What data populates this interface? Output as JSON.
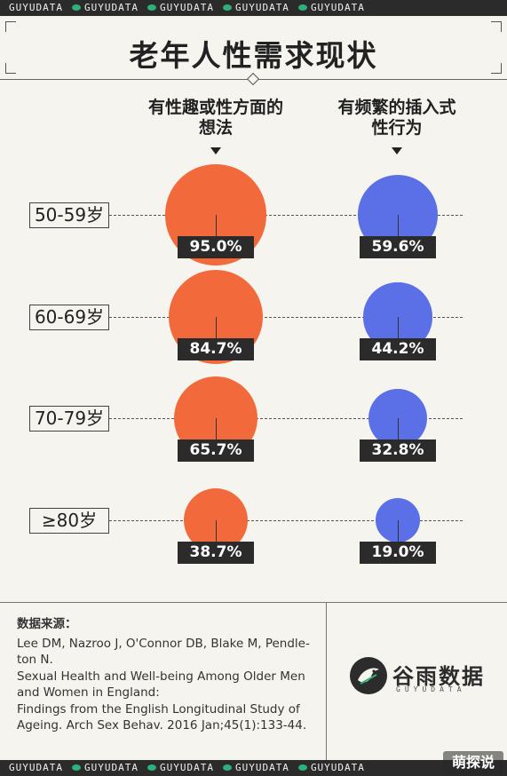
{
  "brand_band": [
    "GUYUDATA",
    "GUYUDATA",
    "GUYUDATA",
    "GUYUDATA",
    "GUYUDATA"
  ],
  "title": "老年人性需求现状",
  "colors": {
    "interest": "#f26a3c",
    "activity": "#5b6fe6",
    "label_bg": "#2b2b2b",
    "background": "#f6f4ee"
  },
  "chart_data": {
    "type": "bubble",
    "title": "老年人性需求现状",
    "categories": [
      "50-59岁",
      "60-69岁",
      "70-79岁",
      "≥80岁"
    ],
    "series": [
      {
        "name": "有性趣或性方面的想法",
        "values": [
          95.0,
          84.7,
          65.7,
          38.7
        ],
        "labels": [
          "95.0%",
          "84.7%",
          "65.7%",
          "38.7%"
        ]
      },
      {
        "name": "有频繁的插入式性行为",
        "values": [
          59.6,
          44.2,
          32.8,
          19.0
        ],
        "labels": [
          "59.6%",
          "44.2%",
          "32.8%",
          "19.0%"
        ]
      }
    ],
    "series_headings": [
      [
        "有性趣或性方面的",
        "想法"
      ],
      [
        "有频繁的插入式",
        "性行为"
      ]
    ],
    "unit": "%"
  },
  "source": {
    "heading": "数据来源：",
    "lines": [
      "Lee DM, Nazroo J, O'Connor DB, Blake M, Pendle-",
      "ton N.",
      "Sexual Health and Well-being Among Older Men",
      "and Women in England:",
      "Findings from the English Longitudinal Study of",
      "Ageing. Arch Sex Behav. 2016 Jan;45(1):133-44."
    ]
  },
  "logo": {
    "name": "谷雨数据",
    "sub": "GUYUDATA"
  },
  "watermark": "萌探说"
}
